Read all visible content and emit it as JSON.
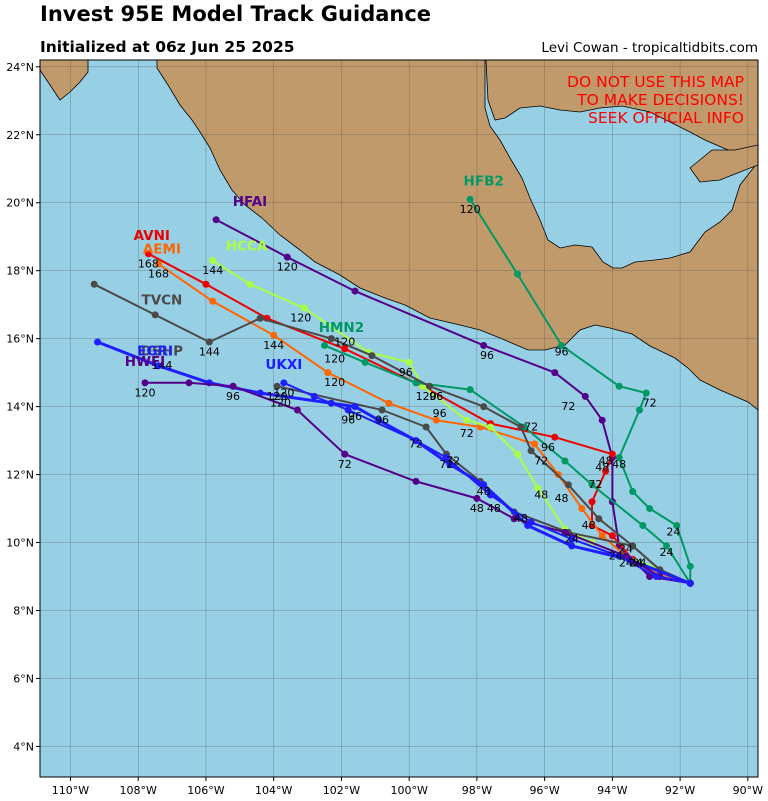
{
  "header": {
    "title": "Invest 95E Model Track Guidance",
    "subtitle": "Initialized at 06z Jun 25 2025",
    "credit": "Levi Cowan - tropicaltidbits.com"
  },
  "warning": [
    "DO NOT USE THIS MAP",
    "TO MAKE DECISIONS!",
    "SEEK OFFICIAL INFO"
  ],
  "map": {
    "lon_range": [
      -110.9,
      -89.7
    ],
    "lat_range": [
      3.1,
      24.2
    ],
    "lon_ticks": [
      -110,
      -108,
      -106,
      -104,
      -102,
      -100,
      -98,
      -96,
      -94,
      -92,
      -90
    ],
    "lon_tick_labels": [
      "110°W",
      "108°W",
      "106°W",
      "104°W",
      "102°W",
      "100°W",
      "98°W",
      "96°W",
      "94°W",
      "92°W",
      "90°W"
    ],
    "lat_ticks": [
      4,
      6,
      8,
      10,
      12,
      14,
      16,
      18,
      20,
      22,
      24
    ],
    "lat_tick_labels": [
      "4°N",
      "6°N",
      "8°N",
      "10°N",
      "12°N",
      "14°N",
      "16°N",
      "18°N",
      "20°N",
      "22°N",
      "24°N"
    ],
    "ocean_color": "#97cfe5",
    "land_color": "#c09a6b",
    "grid": true
  },
  "models": [
    {
      "name": "HFB2",
      "color": "#009966",
      "label_at": [
        -97.8,
        20.5
      ],
      "points": [
        [
          -91.7,
          8.8
        ],
        [
          -91.7,
          9.3
        ],
        [
          -92.1,
          10.5
        ],
        [
          -92.9,
          11.0
        ],
        [
          -93.4,
          11.5
        ],
        [
          -93.8,
          12.5
        ],
        [
          -93.2,
          13.9
        ],
        [
          -93.0,
          14.4
        ],
        [
          -93.8,
          14.6
        ],
        [
          -95.5,
          15.8
        ],
        [
          -96.8,
          17.9
        ],
        [
          -98.2,
          20.1
        ]
      ],
      "hour_labels": [
        {
          "t": "24",
          "at": [
            -92.2,
            10.2
          ]
        },
        {
          "t": "48",
          "at": [
            -93.8,
            12.2
          ]
        },
        {
          "t": "72",
          "at": [
            -92.9,
            14.0
          ]
        },
        {
          "t": "96",
          "at": [
            -95.5,
            15.5
          ]
        },
        {
          "t": "120",
          "at": [
            -98.2,
            19.7
          ]
        }
      ]
    },
    {
      "name": "HFAI",
      "color": "#550088",
      "label_at": [
        -104.7,
        19.9
      ],
      "points": [
        [
          -91.7,
          8.8
        ],
        [
          -92.9,
          9.0
        ],
        [
          -93.4,
          9.5
        ],
        [
          -93.8,
          9.9
        ],
        [
          -94.0,
          11.2
        ],
        [
          -94.0,
          12.5
        ],
        [
          -94.3,
          13.6
        ],
        [
          -94.8,
          14.3
        ],
        [
          -95.7,
          15.0
        ],
        [
          -97.8,
          15.8
        ],
        [
          -101.6,
          17.4
        ],
        [
          -103.6,
          18.4
        ],
        [
          -105.7,
          19.5
        ]
      ],
      "hour_labels": [
        {
          "t": "48",
          "at": [
            -94.3,
            12.1
          ]
        },
        {
          "t": "72",
          "at": [
            -95.3,
            13.9
          ]
        },
        {
          "t": "96",
          "at": [
            -97.7,
            15.4
          ]
        },
        {
          "t": "120",
          "at": [
            -103.6,
            18.0
          ]
        }
      ]
    },
    {
      "name": "AVNI",
      "color": "#ee0000",
      "label_at": [
        -107.6,
        18.9
      ],
      "points": [
        [
          -91.7,
          8.8
        ],
        [
          -92.6,
          9.1
        ],
        [
          -93.4,
          9.5
        ],
        [
          -94.0,
          10.2
        ],
        [
          -94.6,
          10.5
        ],
        [
          -94.6,
          11.2
        ],
        [
          -94.2,
          12.1
        ],
        [
          -94.0,
          12.6
        ],
        [
          -95.7,
          13.1
        ],
        [
          -97.6,
          13.5
        ],
        [
          -99.6,
          14.6
        ],
        [
          -101.9,
          15.7
        ],
        [
          -104.2,
          16.6
        ],
        [
          -106.0,
          17.6
        ],
        [
          -107.7,
          18.5
        ]
      ],
      "hour_labels": [
        {
          "t": "24",
          "at": [
            -93.2,
            9.3
          ]
        },
        {
          "t": "48",
          "at": [
            -94.2,
            12.3
          ]
        },
        {
          "t": "72",
          "at": [
            -94.5,
            11.6
          ]
        },
        {
          "t": "96",
          "at": [
            -95.9,
            12.7
          ]
        },
        {
          "t": "120",
          "at": [
            -99.5,
            14.2
          ]
        },
        {
          "t": "168",
          "at": [
            -107.7,
            18.1
          ]
        }
      ]
    },
    {
      "name": "AEMI",
      "color": "#ff6600",
      "label_at": [
        -107.3,
        18.5
      ],
      "points": [
        [
          -91.7,
          8.8
        ],
        [
          -92.6,
          9.1
        ],
        [
          -93.6,
          9.6
        ],
        [
          -94.3,
          10.2
        ],
        [
          -94.9,
          11.0
        ],
        [
          -95.6,
          12.0
        ],
        [
          -96.3,
          12.9
        ],
        [
          -97.9,
          13.4
        ],
        [
          -99.2,
          13.6
        ],
        [
          -100.6,
          14.1
        ],
        [
          -102.4,
          15.0
        ],
        [
          -104.0,
          16.1
        ],
        [
          -105.8,
          17.1
        ],
        [
          -107.4,
          18.2
        ]
      ],
      "hour_labels": [
        {
          "t": "24",
          "at": [
            -93.3,
            9.3
          ]
        },
        {
          "t": "48",
          "at": [
            -94.7,
            10.4
          ]
        },
        {
          "t": "72",
          "at": [
            -96.1,
            12.3
          ]
        },
        {
          "t": "96",
          "at": [
            -99.1,
            13.7
          ]
        },
        {
          "t": "120",
          "at": [
            -102.2,
            14.6
          ]
        },
        {
          "t": "144",
          "at": [
            -104.0,
            15.7
          ]
        },
        {
          "t": "168",
          "at": [
            -107.4,
            17.8
          ]
        }
      ]
    },
    {
      "name": "HCCA",
      "color": "#aaff44",
      "label_at": [
        -104.8,
        18.6
      ],
      "points": [
        [
          -91.7,
          8.8
        ],
        [
          -92.6,
          9.2
        ],
        [
          -93.6,
          9.6
        ],
        [
          -94.6,
          10.0
        ],
        [
          -95.4,
          10.4
        ],
        [
          -96.2,
          11.6
        ],
        [
          -96.8,
          12.6
        ],
        [
          -97.6,
          13.4
        ],
        [
          -98.3,
          13.6
        ],
        [
          -99.6,
          14.6
        ],
        [
          -100.0,
          15.3
        ],
        [
          -101.2,
          15.6
        ],
        [
          -103.1,
          16.9
        ],
        [
          -104.7,
          17.6
        ],
        [
          -105.8,
          18.3
        ]
      ],
      "hour_labels": [
        {
          "t": "48",
          "at": [
            -96.1,
            11.3
          ]
        },
        {
          "t": "72",
          "at": [
            -98.3,
            13.1
          ]
        },
        {
          "t": "96",
          "at": [
            -100.1,
            14.9
          ]
        },
        {
          "t": "120",
          "at": [
            -103.2,
            16.5
          ]
        },
        {
          "t": "144",
          "at": [
            -105.8,
            17.9
          ]
        }
      ]
    },
    {
      "name": "HMN2",
      "color": "#009966",
      "label_at": [
        -102.0,
        16.2
      ],
      "points": [
        [
          -91.7,
          8.8
        ],
        [
          -92.4,
          9.9
        ],
        [
          -93.1,
          10.5
        ],
        [
          -94.6,
          11.7
        ],
        [
          -95.4,
          12.4
        ],
        [
          -96.6,
          13.4
        ],
        [
          -98.2,
          14.5
        ],
        [
          -99.8,
          14.7
        ],
        [
          -101.3,
          15.3
        ],
        [
          -102.5,
          15.8
        ]
      ],
      "hour_labels": [
        {
          "t": "24",
          "at": [
            -92.4,
            9.6
          ]
        },
        {
          "t": "96",
          "at": [
            -99.2,
            14.2
          ]
        },
        {
          "t": "120",
          "at": [
            -102.2,
            15.3
          ]
        }
      ]
    },
    {
      "name": "TVCN",
      "color": "#4a4a4a",
      "label_at": [
        -107.3,
        17.0
      ],
      "points": [
        [
          -91.7,
          8.8
        ],
        [
          -92.6,
          9.2
        ],
        [
          -93.4,
          9.9
        ],
        [
          -94.4,
          10.7
        ],
        [
          -95.3,
          11.7
        ],
        [
          -96.4,
          12.7
        ],
        [
          -96.7,
          13.4
        ],
        [
          -97.8,
          14.0
        ],
        [
          -99.4,
          14.6
        ],
        [
          -101.1,
          15.5
        ],
        [
          -102.3,
          16.0
        ],
        [
          -104.4,
          16.6
        ],
        [
          -105.9,
          15.9
        ],
        [
          -107.5,
          16.7
        ],
        [
          -109.3,
          17.6
        ]
      ],
      "hour_labels": [
        {
          "t": "24",
          "at": [
            -93.6,
            9.7
          ]
        },
        {
          "t": "48",
          "at": [
            -95.5,
            11.2
          ]
        },
        {
          "t": "72",
          "at": [
            -96.4,
            13.3
          ]
        },
        {
          "t": "96",
          "at": [
            -99.2,
            14.2
          ]
        },
        {
          "t": "120",
          "at": [
            -101.9,
            15.8
          ]
        },
        {
          "t": "144",
          "at": [
            -105.9,
            15.5
          ]
        }
      ]
    },
    {
      "name": "DSHP",
      "color": "#4a4a4a",
      "label_at": [
        -107.3,
        15.5
      ],
      "points": [
        [
          -91.7,
          8.8
        ],
        [
          -92.6,
          9.2
        ],
        [
          -93.4,
          9.9
        ],
        [
          -95.3,
          10.3
        ],
        [
          -96.9,
          10.9
        ],
        [
          -97.9,
          11.8
        ],
        [
          -98.9,
          12.6
        ],
        [
          -99.5,
          13.4
        ],
        [
          -100.8,
          13.9
        ],
        [
          -103.9,
          14.6
        ]
      ],
      "hour_labels": [
        {
          "t": "24",
          "at": [
            -95.2,
            10.0
          ]
        },
        {
          "t": "48",
          "at": [
            -97.8,
            11.4
          ]
        },
        {
          "t": "72",
          "at": [
            -98.9,
            12.2
          ]
        },
        {
          "t": "96",
          "at": [
            -100.8,
            13.5
          ]
        },
        {
          "t": "120",
          "at": [
            -103.9,
            14.2
          ]
        },
        {
          "t": "144",
          "at": [
            -107.3,
            15.1
          ]
        }
      ]
    },
    {
      "name": "EGRI",
      "color": "#1e1eff",
      "label_at": [
        -107.5,
        15.5
      ],
      "points": [
        [
          -91.7,
          8.8
        ],
        [
          -93.5,
          9.5
        ],
        [
          -95.2,
          9.9
        ],
        [
          -96.5,
          10.5
        ],
        [
          -97.8,
          11.7
        ],
        [
          -98.8,
          12.3
        ],
        [
          -99.8,
          13.0
        ],
        [
          -100.9,
          13.6
        ],
        [
          -101.6,
          14.0
        ],
        [
          -102.3,
          14.1
        ],
        [
          -104.4,
          14.4
        ],
        [
          -105.9,
          14.7
        ],
        [
          -107.4,
          15.2
        ],
        [
          -109.2,
          15.9
        ]
      ],
      "hour_labels": [
        {
          "t": "24",
          "at": [
            -93.3,
            9.3
          ]
        },
        {
          "t": "48",
          "at": [
            -96.7,
            10.6
          ]
        },
        {
          "t": "72",
          "at": [
            -99.8,
            12.8
          ]
        },
        {
          "t": "96",
          "at": [
            -101.6,
            13.6
          ]
        },
        {
          "t": "120",
          "at": [
            -103.8,
            14.0
          ]
        }
      ]
    },
    {
      "name": "HWFI",
      "color": "#550088",
      "label_at": [
        -107.8,
        15.2
      ],
      "points": [
        [
          -91.7,
          8.8
        ],
        [
          -92.6,
          9.0
        ],
        [
          -93.6,
          9.6
        ],
        [
          -95.4,
          10.3
        ],
        [
          -96.9,
          10.7
        ],
        [
          -98.0,
          11.3
        ],
        [
          -99.8,
          11.8
        ],
        [
          -101.9,
          12.6
        ],
        [
          -103.3,
          13.9
        ],
        [
          -105.2,
          14.6
        ],
        [
          -106.5,
          14.7
        ],
        [
          -107.8,
          14.7
        ]
      ],
      "hour_labels": [
        {
          "t": "24",
          "at": [
            -93.6,
            9.3
          ]
        },
        {
          "t": "48",
          "at": [
            -98.0,
            10.9
          ]
        },
        {
          "t": "72",
          "at": [
            -101.9,
            12.2
          ]
        },
        {
          "t": "96",
          "at": [
            -105.2,
            14.2
          ]
        },
        {
          "t": "120",
          "at": [
            -107.8,
            14.3
          ]
        }
      ]
    },
    {
      "name": "UKXI",
      "color": "#1e1eff",
      "label_at": [
        -103.7,
        15.1
      ],
      "points": [
        [
          -91.7,
          8.8
        ],
        [
          -92.7,
          9.0
        ],
        [
          -93.8,
          9.6
        ],
        [
          -95.2,
          10.1
        ],
        [
          -96.4,
          10.6
        ],
        [
          -97.6,
          11.4
        ],
        [
          -98.9,
          12.5
        ],
        [
          -99.8,
          13.0
        ],
        [
          -101.8,
          13.9
        ],
        [
          -102.8,
          14.3
        ],
        [
          -103.7,
          14.7
        ]
      ],
      "hour_labels": [
        {
          "t": "24",
          "at": [
            -93.9,
            9.5
          ]
        },
        {
          "t": "48",
          "at": [
            -97.5,
            10.9
          ]
        },
        {
          "t": "72",
          "at": [
            -98.7,
            12.3
          ]
        },
        {
          "t": "96",
          "at": [
            -101.8,
            13.5
          ]
        },
        {
          "t": "120",
          "at": [
            -103.7,
            14.3
          ]
        }
      ]
    }
  ]
}
